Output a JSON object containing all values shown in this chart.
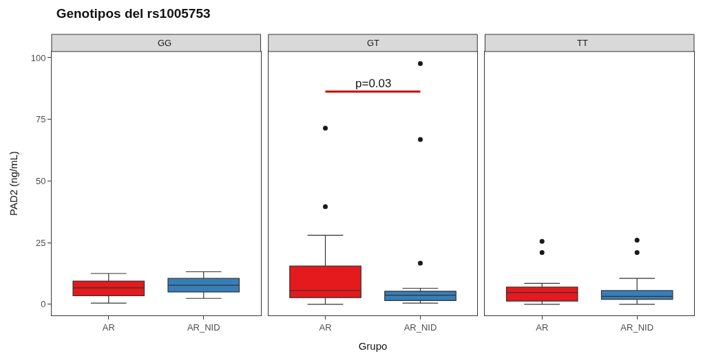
{
  "chart_data": [
    {
      "type": "box",
      "title": "Genotipos del rs1005753",
      "subtitle": "GG",
      "categories": [
        "AR",
        "AR_NID"
      ],
      "colors": [
        "#e41a1c",
        "#377eb8"
      ],
      "ylabel": "PAD2 (ng/mL)",
      "ylim": [
        -4.5,
        102.5
      ],
      "yticks": [
        0,
        25,
        50,
        75,
        100
      ],
      "tick_labels": "xy",
      "boxes": [
        {
          "low": 0.5,
          "q1": 3.5,
          "median": 6.7,
          "q3": 9.4,
          "high": 12.5
        },
        {
          "low": 2.4,
          "q1": 5,
          "median": 7.7,
          "q3": 10.5,
          "high": 13.2
        }
      ]
    },
    {
      "type": "box",
      "subtitle": "GT",
      "xlabel": "Grupo",
      "categories": [
        "AR",
        "AR_NID"
      ],
      "colors": [
        "#e41a1c",
        "#377eb8"
      ],
      "ylim": [
        -4.5,
        102.5
      ],
      "tick_labels": "x",
      "annotations": [
        "p=0.03"
      ],
      "boxes": [
        {
          "low": 0,
          "q1": 2.7,
          "median": 5.6,
          "q3": 15.5,
          "high": 28,
          "outliers": [
            39.6,
            71.4
          ]
        },
        {
          "low": 0.5,
          "q1": 1.5,
          "median": 3.7,
          "q3": 5.3,
          "high": 6.5,
          "outliers": [
            16.7,
            66.8,
            97.6
          ]
        }
      ]
    },
    {
      "type": "box",
      "subtitle": "TT",
      "categories": [
        "AR",
        "AR_NID"
      ],
      "colors": [
        "#e41a1c",
        "#377eb8"
      ],
      "ylim": [
        -4.5,
        102.5
      ],
      "tick_labels": "x",
      "boxes": [
        {
          "low": 0,
          "q1": 1.3,
          "median": 4.8,
          "q3": 7,
          "high": 8.5,
          "outliers": [
            21,
            25.5
          ]
        },
        {
          "low": 0,
          "q1": 2,
          "median": 3.2,
          "q3": 5.6,
          "high": 10.5,
          "outliers": [
            21,
            26
          ]
        }
      ]
    }
  ]
}
